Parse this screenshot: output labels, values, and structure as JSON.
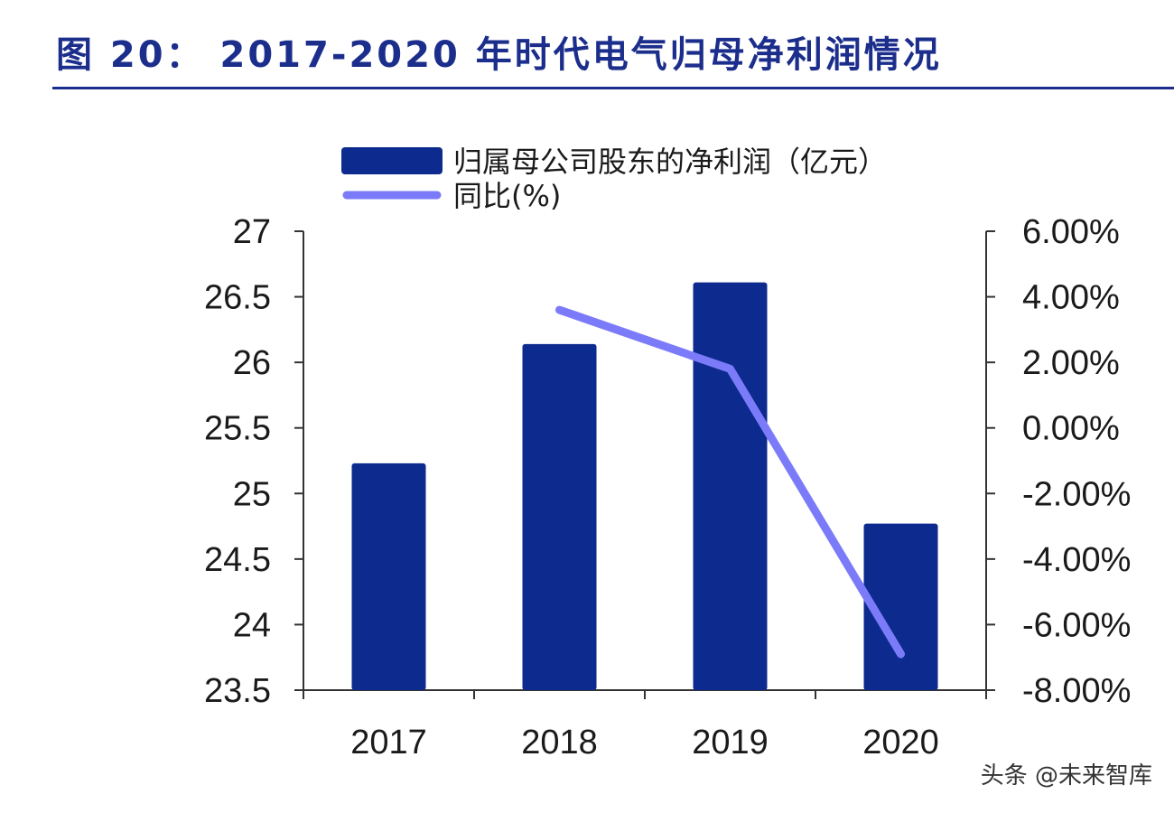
{
  "figure": {
    "title": "图 20：  2017-2020 年时代电气归母净利润情况"
  },
  "watermark": "头条 @未来智库",
  "colors": {
    "title": "#1C2E8C",
    "bar": "#0D2A8E",
    "line": "#7B7BFA",
    "axis": "#333333"
  },
  "chart_data": {
    "type": "bar",
    "categories": [
      "2017",
      "2018",
      "2019",
      "2020"
    ],
    "series": [
      {
        "name": "归属母公司股东的净利润（亿元）",
        "type": "bar",
        "axis": "left",
        "values": [
          25.23,
          26.14,
          26.61,
          24.77
        ]
      },
      {
        "name": "同比(%)",
        "type": "line",
        "axis": "right",
        "values": [
          null,
          3.6,
          1.8,
          -6.9
        ]
      }
    ],
    "y_left": {
      "min": 23.5,
      "max": 27,
      "ticks": [
        "27",
        "26.5",
        "26",
        "25.5",
        "25",
        "24.5",
        "24",
        "23.5"
      ]
    },
    "y_right": {
      "min": -8,
      "max": 6,
      "ticks": [
        "6.00%",
        "4.00%",
        "2.00%",
        "0.00%",
        "-2.00%",
        "-4.00%",
        "-6.00%",
        "-8.00%"
      ]
    },
    "legend_position": "top",
    "grid": false
  }
}
